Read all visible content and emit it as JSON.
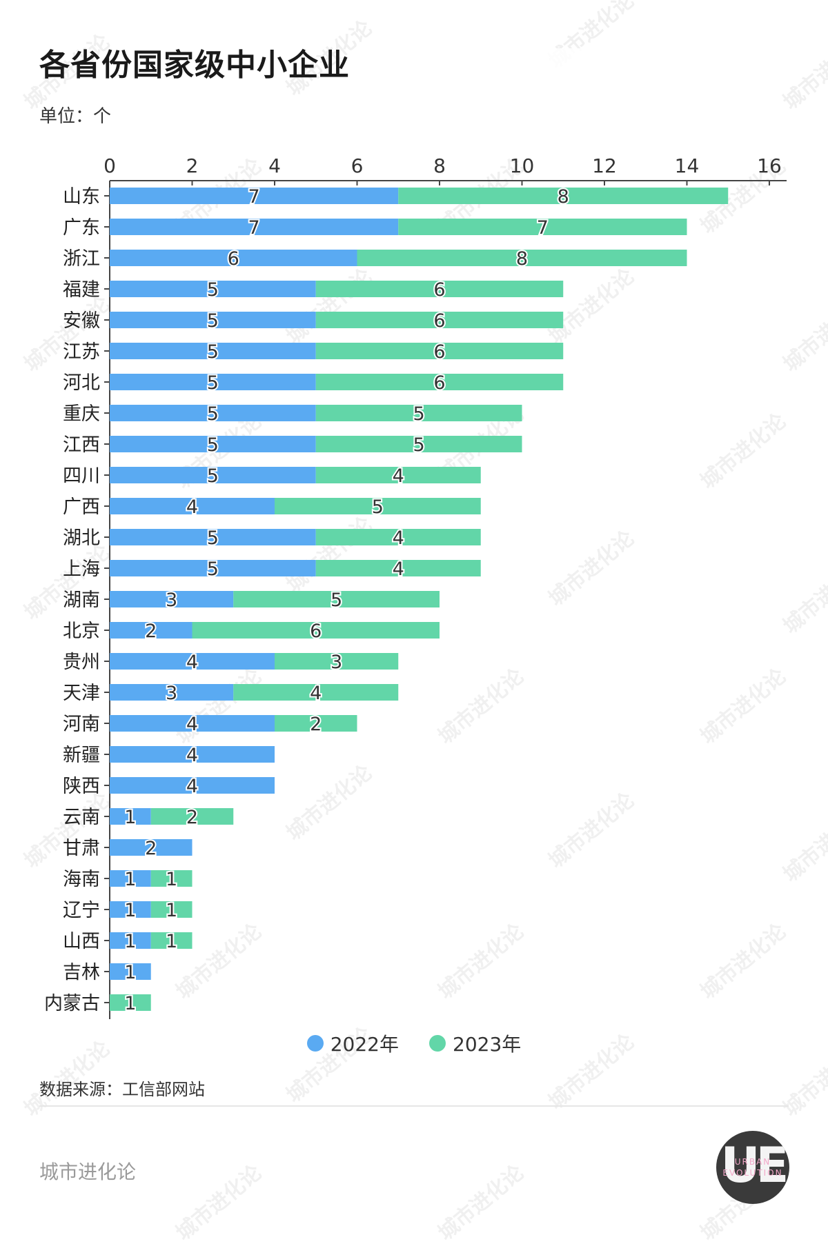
{
  "title": "各省份国家级中小企业",
  "unit_label": "单位：个",
  "source": "数据来源：工信部网站",
  "brand": "城市进化论",
  "logo": {
    "big": "UE",
    "small_top": "URBAN",
    "small_bottom": "EVOLUTION"
  },
  "watermark": "城市进化论",
  "colors": {
    "series_2022": "#5aaaf2",
    "series_2023": "#62d6a8",
    "axis": "#444444"
  },
  "chart_data": {
    "type": "bar",
    "orientation": "horizontal",
    "stacked": true,
    "categories": [
      "山东",
      "广东",
      "浙江",
      "福建",
      "安徽",
      "江苏",
      "河北",
      "重庆",
      "江西",
      "四川",
      "广西",
      "湖北",
      "上海",
      "湖南",
      "北京",
      "贵州",
      "天津",
      "河南",
      "新疆",
      "陕西",
      "云南",
      "甘肃",
      "海南",
      "辽宁",
      "山西",
      "吉林",
      "内蒙古"
    ],
    "series": [
      {
        "name": "2022年",
        "values": [
          7,
          7,
          6,
          5,
          5,
          5,
          5,
          5,
          5,
          5,
          4,
          5,
          5,
          3,
          2,
          4,
          3,
          4,
          4,
          4,
          1,
          2,
          1,
          1,
          1,
          1,
          0
        ]
      },
      {
        "name": "2023年",
        "values": [
          8,
          7,
          8,
          6,
          6,
          6,
          6,
          5,
          5,
          4,
          5,
          4,
          4,
          5,
          6,
          3,
          4,
          2,
          0,
          0,
          2,
          0,
          1,
          1,
          1,
          0,
          1
        ]
      }
    ],
    "xlim": [
      0,
      16
    ],
    "xticks": [
      "0",
      "2",
      "4",
      "6",
      "8",
      "10",
      "12",
      "14",
      "16"
    ],
    "xaxis_position": "top",
    "grid": false,
    "legend_position": "bottom-center"
  }
}
